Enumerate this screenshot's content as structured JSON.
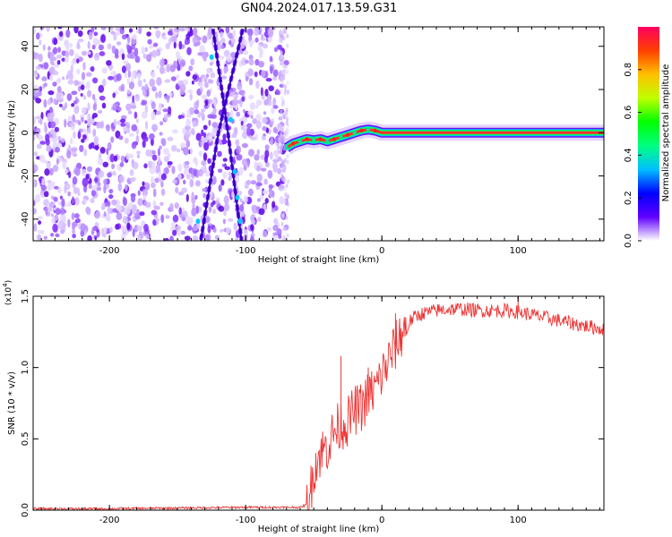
{
  "title": "GN04.2024.017.13.59.G31",
  "chart_data": [
    {
      "type": "heatmap",
      "name": "spectrogram",
      "xlabel": "Height of straight line (km)",
      "ylabel": "Frequency (Hz)",
      "xlim": [
        -256,
        163
      ],
      "ylim": [
        -50,
        49
      ],
      "x_ticks": [
        -200,
        -100,
        0,
        100
      ],
      "x_tick_labels": [
        "-200",
        "-100",
        "0",
        "100"
      ],
      "y_ticks": [
        40,
        20,
        0,
        -20,
        -40
      ],
      "y_tick_labels": [
        "40",
        "20",
        "0",
        "-20",
        "-40"
      ],
      "noise_region_x": [
        -256,
        -70
      ],
      "signal_track": {
        "x": [
          -70,
          -65,
          -60,
          -55,
          -50,
          -45,
          -40,
          -35,
          -30,
          -25,
          -20,
          -15,
          -10,
          -5,
          0,
          163
        ],
        "frequency": [
          -7,
          -5,
          -4,
          -3,
          -3.5,
          -3,
          -4,
          -3,
          -2,
          -1,
          0,
          1,
          1.5,
          1,
          0,
          0
        ]
      },
      "diagonal_tracks": [
        {
          "x": [
            -124,
            -113,
            -103
          ],
          "frequency": [
            48,
            0,
            -50
          ]
        },
        {
          "x": [
            -102,
            -120,
            -133
          ],
          "frequency": [
            48,
            0,
            -50
          ]
        }
      ],
      "colorbar": {
        "label": "Normalized spectral amplitude",
        "ticks": [
          0.0,
          0.2,
          0.4,
          0.6,
          0.8
        ],
        "tick_labels": [
          "0.0",
          "0.2",
          "0.4",
          "0.6",
          "0.8"
        ],
        "range": [
          0,
          1
        ],
        "colors": [
          "#ffffff",
          "#6000ff",
          "#0000ff",
          "#00c0ff",
          "#00ff80",
          "#00ff00",
          "#c0ff00",
          "#ffc000",
          "#ff4000",
          "#ff0060"
        ]
      }
    },
    {
      "type": "line",
      "name": "snr",
      "xlabel": "Height of straight line (km)",
      "ylabel": "SNR (10 * v/v)",
      "y_multiplier_label": "(x10",
      "y_multiplier_exp": "4",
      "y_multiplier_close": ")",
      "xlim": [
        -256,
        163
      ],
      "ylim": [
        0,
        1.5
      ],
      "x_ticks": [
        -200,
        -100,
        0,
        100
      ],
      "x_tick_labels": [
        "-200",
        "-100",
        "0",
        "100"
      ],
      "y_ticks": [
        0.0,
        0.5,
        1.0,
        1.5
      ],
      "y_tick_labels": [
        "0.0",
        "0.5",
        "1.0",
        "1.5"
      ],
      "color": "#ee3333",
      "series": [
        {
          "x": [
            -256,
            -200,
            -150,
            -100,
            -80,
            -60,
            -55,
            -52,
            -50,
            -45,
            -40,
            -35,
            -30,
            -25,
            -20,
            -15,
            -10,
            -5,
            0,
            5,
            10,
            15,
            20,
            25,
            30,
            40,
            50,
            60,
            70,
            80,
            90,
            100,
            110,
            120,
            130,
            140,
            150,
            163
          ],
          "y": [
            0.01,
            0.01,
            0.015,
            0.02,
            0.02,
            0.02,
            0.04,
            0.15,
            0.3,
            0.4,
            0.45,
            0.55,
            0.6,
            0.62,
            0.7,
            0.72,
            0.8,
            0.85,
            0.95,
            1.05,
            1.15,
            1.25,
            1.32,
            1.36,
            1.38,
            1.4,
            1.41,
            1.41,
            1.4,
            1.4,
            1.4,
            1.39,
            1.37,
            1.35,
            1.33,
            1.31,
            1.29,
            1.27
          ]
        }
      ],
      "spikes": [
        {
          "x": -30,
          "y": 1.08
        },
        {
          "x": -10,
          "y": 1.0
        },
        {
          "x": 10,
          "y": 1.38
        },
        {
          "x": 100,
          "y": 1.52
        }
      ]
    }
  ]
}
